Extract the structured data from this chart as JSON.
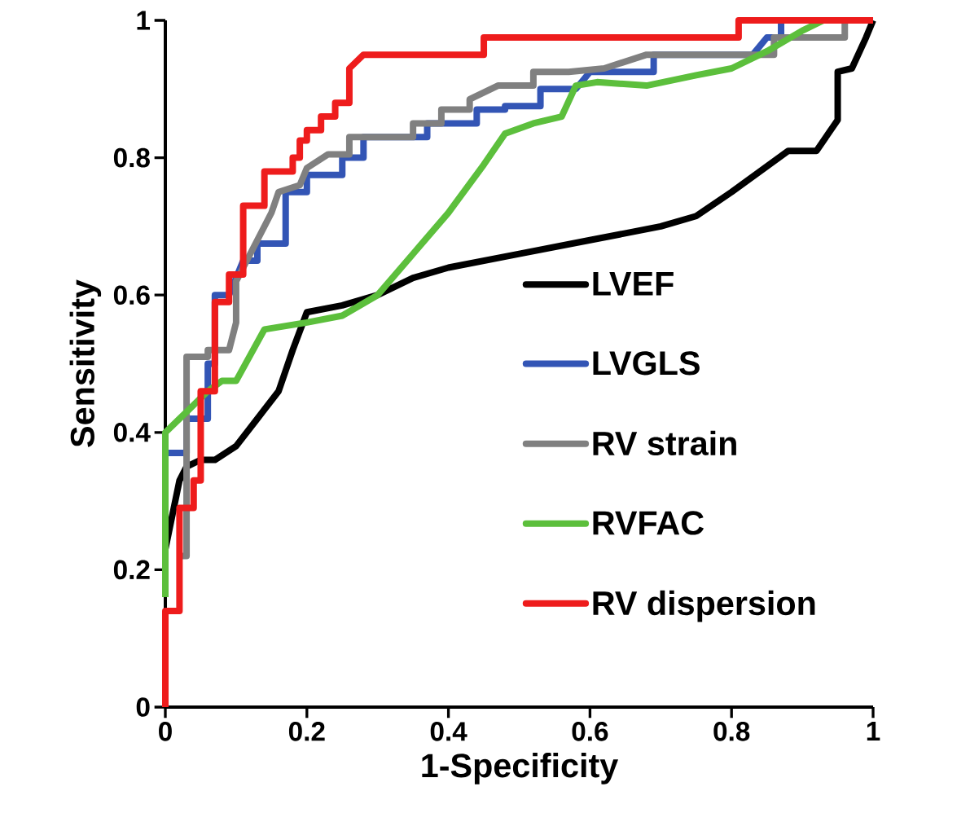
{
  "chart_data": {
    "type": "line",
    "xlabel": "1-Specificity",
    "ylabel": "Sensitivity",
    "xlim": [
      0,
      1
    ],
    "ylim": [
      0,
      1
    ],
    "xticks": [
      0,
      0.2,
      0.4,
      0.6,
      0.8,
      1
    ],
    "yticks": [
      0,
      0.2,
      0.4,
      0.6,
      0.8,
      1
    ],
    "grid": false,
    "legend": "bottom right",
    "marker": "none",
    "line_style": "solid",
    "series": [
      {
        "name": "LVEF",
        "color": "#000000",
        "x": [
          0,
          0.02,
          0.03,
          0.05,
          0.07,
          0.1,
          0.13,
          0.16,
          0.18,
          0.2,
          0.25,
          0.3,
          0.35,
          0.4,
          0.5,
          0.6,
          0.7,
          0.75,
          0.8,
          0.88,
          0.92,
          0.95,
          0.95,
          0.97,
          0.99,
          1
        ],
        "values": [
          0.23,
          0.33,
          0.35,
          0.36,
          0.36,
          0.38,
          0.42,
          0.46,
          0.52,
          0.575,
          0.585,
          0.6,
          0.625,
          0.64,
          0.66,
          0.68,
          0.7,
          0.715,
          0.75,
          0.81,
          0.81,
          0.855,
          0.925,
          0.93,
          0.975,
          1
        ]
      },
      {
        "name": "LVGLS",
        "color": "#3355b5",
        "x": [
          0,
          0.03,
          0.03,
          0.06,
          0.06,
          0.07,
          0.07,
          0.09,
          0.11,
          0.13,
          0.13,
          0.17,
          0.17,
          0.2,
          0.2,
          0.25,
          0.25,
          0.28,
          0.28,
          0.37,
          0.37,
          0.44,
          0.44,
          0.48,
          0.48,
          0.53,
          0.53,
          0.58,
          0.6,
          0.69,
          0.69,
          0.83,
          0.85,
          0.87,
          0.87,
          1
        ],
        "values": [
          0.37,
          0.37,
          0.42,
          0.42,
          0.5,
          0.5,
          0.6,
          0.6,
          0.65,
          0.65,
          0.675,
          0.675,
          0.75,
          0.75,
          0.775,
          0.775,
          0.8,
          0.8,
          0.83,
          0.83,
          0.85,
          0.85,
          0.87,
          0.87,
          0.875,
          0.875,
          0.9,
          0.9,
          0.925,
          0.925,
          0.95,
          0.95,
          0.975,
          0.975,
          1,
          1
        ]
      },
      {
        "name": "RV strain",
        "color": "#808080",
        "x": [
          0.02,
          0.03,
          0.03,
          0.06,
          0.06,
          0.09,
          0.1,
          0.1,
          0.13,
          0.15,
          0.16,
          0.19,
          0.2,
          0.23,
          0.26,
          0.26,
          0.35,
          0.35,
          0.39,
          0.39,
          0.43,
          0.43,
          0.47,
          0.52,
          0.52,
          0.57,
          0.62,
          0.68,
          0.86,
          0.86,
          0.96,
          0.96,
          1
        ],
        "values": [
          0.22,
          0.22,
          0.51,
          0.51,
          0.52,
          0.52,
          0.56,
          0.62,
          0.68,
          0.72,
          0.75,
          0.76,
          0.785,
          0.805,
          0.805,
          0.83,
          0.83,
          0.85,
          0.85,
          0.87,
          0.87,
          0.885,
          0.905,
          0.905,
          0.925,
          0.925,
          0.93,
          0.95,
          0.95,
          0.975,
          0.975,
          1,
          1
        ]
      },
      {
        "name": "RVFAC",
        "color": "#5cbf3c",
        "x": [
          0,
          0,
          0.03,
          0.06,
          0.08,
          0.1,
          0.14,
          0.2,
          0.25,
          0.3,
          0.35,
          0.4,
          0.45,
          0.48,
          0.52,
          0.56,
          0.58,
          0.61,
          0.68,
          0.75,
          0.8,
          0.85,
          0.9,
          0.93,
          1
        ],
        "values": [
          0.16,
          0.4,
          0.43,
          0.46,
          0.475,
          0.475,
          0.55,
          0.56,
          0.57,
          0.6,
          0.66,
          0.72,
          0.79,
          0.835,
          0.85,
          0.86,
          0.905,
          0.91,
          0.905,
          0.92,
          0.93,
          0.955,
          0.985,
          1,
          1
        ]
      },
      {
        "name": "RV dispersion",
        "color": "#ee1c1c",
        "x": [
          0,
          0,
          0.02,
          0.02,
          0.04,
          0.04,
          0.05,
          0.05,
          0.07,
          0.07,
          0.09,
          0.09,
          0.11,
          0.11,
          0.14,
          0.14,
          0.18,
          0.18,
          0.19,
          0.19,
          0.2,
          0.2,
          0.22,
          0.22,
          0.24,
          0.24,
          0.26,
          0.26,
          0.28,
          0.45,
          0.45,
          0.81,
          0.81,
          1
        ],
        "values": [
          0,
          0.14,
          0.14,
          0.29,
          0.29,
          0.33,
          0.33,
          0.46,
          0.46,
          0.59,
          0.59,
          0.63,
          0.63,
          0.73,
          0.73,
          0.78,
          0.78,
          0.8,
          0.8,
          0.825,
          0.825,
          0.84,
          0.84,
          0.86,
          0.86,
          0.88,
          0.88,
          0.93,
          0.95,
          0.95,
          0.975,
          0.975,
          1,
          1
        ]
      }
    ]
  }
}
